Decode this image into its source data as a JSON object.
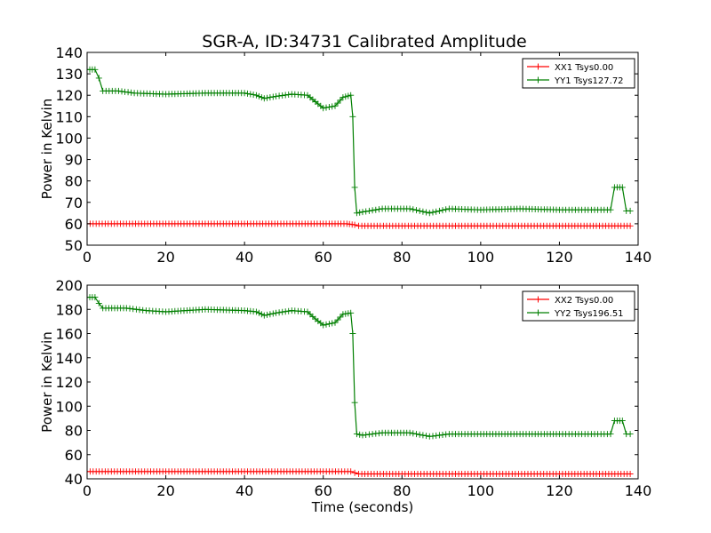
{
  "title": "SGR-A, ID:34731 Calibrated Amplitude",
  "chart_data": [
    {
      "type": "line",
      "title": "SGR-A, ID:34731 Calibrated Amplitude",
      "xlabel": "",
      "ylabel": "Power in Kelvin",
      "xlim": [
        0,
        140
      ],
      "ylim": [
        50,
        140
      ],
      "xticks": [
        "0",
        "20",
        "40",
        "60",
        "80",
        "100",
        "120",
        "140"
      ],
      "yticks": [
        "50",
        "60",
        "70",
        "80",
        "90",
        "100",
        "110",
        "120",
        "130",
        "140"
      ],
      "legend_position": "top-right",
      "grid": false,
      "series": [
        {
          "name": "XX1 Tsys0.00",
          "color": "#ff0000",
          "points": [
            [
              0,
              60
            ],
            [
              10,
              60
            ],
            [
              20,
              60
            ],
            [
              30,
              60
            ],
            [
              40,
              60
            ],
            [
              50,
              60
            ],
            [
              60,
              60
            ],
            [
              66,
              60
            ],
            [
              68,
              59.5
            ],
            [
              69,
              59
            ],
            [
              80,
              59
            ],
            [
              100,
              59
            ],
            [
              120,
              59
            ],
            [
              138,
              59
            ]
          ]
        },
        {
          "name": "YY1 Tsys127.72",
          "color": "#007f00",
          "points": [
            [
              0,
              132
            ],
            [
              2,
              132
            ],
            [
              3,
              128
            ],
            [
              4,
              122
            ],
            [
              8,
              122
            ],
            [
              12,
              121
            ],
            [
              20,
              120.5
            ],
            [
              30,
              121
            ],
            [
              40,
              121
            ],
            [
              43,
              120
            ],
            [
              45,
              118.5
            ],
            [
              48,
              119.5
            ],
            [
              52,
              120.5
            ],
            [
              56,
              120
            ],
            [
              58,
              117
            ],
            [
              60,
              114
            ],
            [
              63,
              115
            ],
            [
              65,
              119
            ],
            [
              67,
              120
            ],
            [
              67.5,
              110
            ],
            [
              68,
              77
            ],
            [
              68.5,
              65
            ],
            [
              70,
              65.5
            ],
            [
              75,
              67
            ],
            [
              82,
              67
            ],
            [
              87,
              65
            ],
            [
              92,
              67
            ],
            [
              100,
              66.5
            ],
            [
              110,
              67
            ],
            [
              120,
              66.5
            ],
            [
              133,
              66.5
            ],
            [
              134,
              77
            ],
            [
              136,
              77
            ],
            [
              137,
              66
            ],
            [
              138,
              66
            ]
          ]
        }
      ]
    },
    {
      "type": "line",
      "title": "",
      "xlabel": "Time (seconds)",
      "ylabel": "Power in Kelvin",
      "xlim": [
        0,
        140
      ],
      "ylim": [
        40,
        200
      ],
      "xticks": [
        "0",
        "20",
        "40",
        "60",
        "80",
        "100",
        "120",
        "140"
      ],
      "yticks": [
        "40",
        "60",
        "80",
        "100",
        "120",
        "140",
        "160",
        "180",
        "200"
      ],
      "legend_position": "top-right",
      "grid": false,
      "series": [
        {
          "name": "XX2 Tsys0.00",
          "color": "#ff0000",
          "points": [
            [
              0,
              46
            ],
            [
              10,
              46
            ],
            [
              20,
              46
            ],
            [
              30,
              46
            ],
            [
              40,
              46
            ],
            [
              50,
              46
            ],
            [
              60,
              46
            ],
            [
              67,
              46
            ],
            [
              68,
              45
            ],
            [
              69,
              44
            ],
            [
              80,
              44
            ],
            [
              100,
              44
            ],
            [
              120,
              44
            ],
            [
              138,
              44
            ]
          ]
        },
        {
          "name": "YY2 Tsys196.51",
          "color": "#007f00",
          "points": [
            [
              0,
              190
            ],
            [
              2,
              190
            ],
            [
              3,
              185
            ],
            [
              4,
              181
            ],
            [
              10,
              181
            ],
            [
              15,
              179
            ],
            [
              20,
              178
            ],
            [
              30,
              180
            ],
            [
              40,
              179
            ],
            [
              43,
              178
            ],
            [
              45,
              175
            ],
            [
              48,
              177
            ],
            [
              52,
              179
            ],
            [
              56,
              178
            ],
            [
              58,
              172
            ],
            [
              60,
              167
            ],
            [
              63,
              169
            ],
            [
              65,
              176
            ],
            [
              67,
              177
            ],
            [
              67.5,
              160
            ],
            [
              68,
              103
            ],
            [
              68.5,
              77
            ],
            [
              70,
              76
            ],
            [
              75,
              78
            ],
            [
              82,
              78
            ],
            [
              87,
              75
            ],
            [
              92,
              77
            ],
            [
              100,
              77
            ],
            [
              110,
              77
            ],
            [
              120,
              77
            ],
            [
              133,
              77
            ],
            [
              134,
              88
            ],
            [
              136,
              88
            ],
            [
              137,
              77
            ],
            [
              138,
              77
            ]
          ]
        }
      ]
    }
  ]
}
